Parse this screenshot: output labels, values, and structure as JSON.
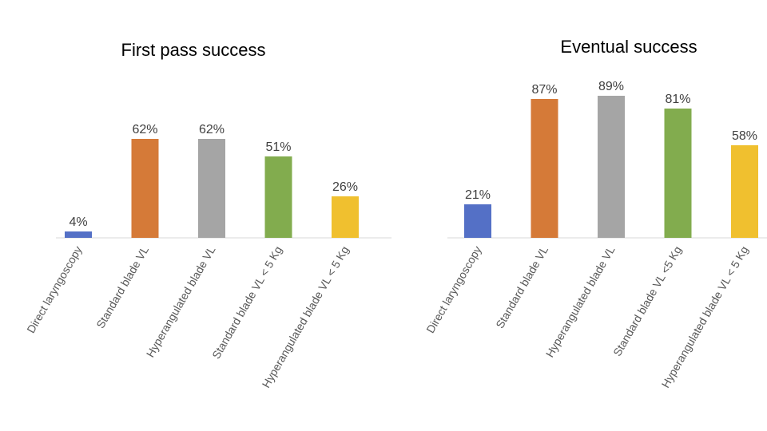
{
  "chart_data": [
    {
      "type": "bar",
      "title": "First pass success",
      "xlabel": "",
      "ylabel": "",
      "ylim": [
        0,
        100
      ],
      "grid": false,
      "legend": "none",
      "categories": [
        "Direct laryngoscopy",
        "Standard blade VL",
        "Hyperangulated blade VL",
        "Standard blade VL < 5 Kg",
        "Hyperangulated blade VL < 5 Kg"
      ],
      "values": [
        4,
        62,
        62,
        51,
        26
      ],
      "value_labels": [
        "4%",
        "62%",
        "62%",
        "51%",
        "26%"
      ],
      "colors": [
        "#5470C6",
        "#D57A38",
        "#A5A5A5",
        "#82AC4E",
        "#F0C02F"
      ]
    },
    {
      "type": "bar",
      "title": "Eventual success",
      "xlabel": "",
      "ylabel": "",
      "ylim": [
        0,
        100
      ],
      "grid": false,
      "legend": "none",
      "categories": [
        "Direct laryngoscopy",
        "Standard blade VL",
        "Hyperangulated blade VL",
        "Standard blade VL <5 Kg",
        "Hyperangulated blade VL < 5 Kg"
      ],
      "values": [
        21,
        87,
        89,
        81,
        58
      ],
      "value_labels": [
        "21%",
        "87%",
        "89%",
        "81%",
        "58%"
      ],
      "colors": [
        "#5470C6",
        "#D57A38",
        "#A5A5A5",
        "#82AC4E",
        "#F0C02F"
      ]
    }
  ]
}
